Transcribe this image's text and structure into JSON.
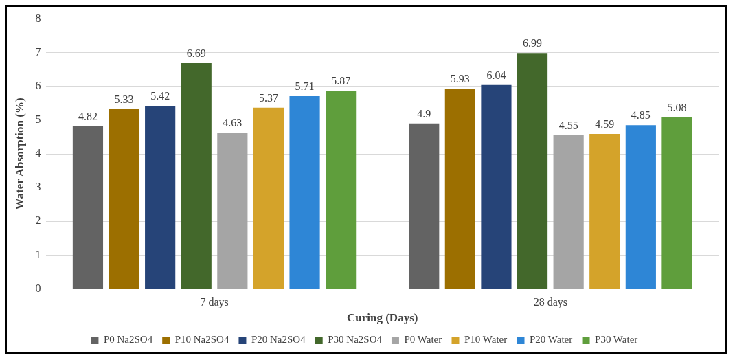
{
  "chart_data": {
    "type": "bar",
    "xlabel": "Curing (Days)",
    "ylabel": "Water Absorption (%)",
    "categories": [
      "7 days",
      "28 days"
    ],
    "series": [
      {
        "name": "P0 Na2SO4",
        "color": "#636363",
        "values": [
          4.82,
          4.9
        ]
      },
      {
        "name": "P10 Na2SO4",
        "color": "#9c6f00",
        "values": [
          5.33,
          5.93
        ]
      },
      {
        "name": "P20 Na2SO4",
        "color": "#264478",
        "values": [
          5.42,
          6.04
        ]
      },
      {
        "name": "P30 Na2SO4",
        "color": "#43682b",
        "values": [
          6.69,
          6.99
        ]
      },
      {
        "name": "P0 Water",
        "color": "#a5a5a5",
        "values": [
          4.63,
          4.55
        ]
      },
      {
        "name": "P10 Water",
        "color": "#d4a32a",
        "values": [
          5.37,
          4.59
        ]
      },
      {
        "name": "P20 Water",
        "color": "#2e86d6",
        "values": [
          5.71,
          4.85
        ]
      },
      {
        "name": "P30 Water",
        "color": "#5f9e3c",
        "values": [
          5.87,
          5.08
        ]
      }
    ],
    "ylim": [
      0,
      8
    ],
    "yticks": [
      0,
      1,
      2,
      3,
      4,
      5,
      6,
      7,
      8
    ],
    "grid": "y",
    "legend": "bottom",
    "data_labels": true
  }
}
